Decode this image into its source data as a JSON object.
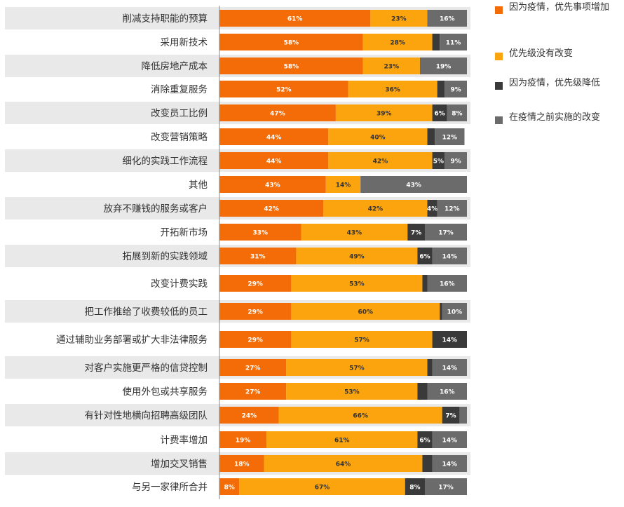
{
  "chart_data": {
    "type": "bar",
    "orientation": "horizontal-stacked-100",
    "categories": [
      "削减支持职能的预算",
      "采用新技术",
      "降低房地产成本",
      "消除重复服务",
      "改变员工比例",
      "改变营销策略",
      "细化的实践工作流程",
      "其他",
      "放弃不赚钱的服务或客户",
      "开拓新市场",
      "拓展到新的实践领域",
      "改变计费实践",
      "把工作推给了收费较低的员工",
      "通过辅助业务部署或扩大非法律服务",
      "对客户实施更严格的信贷控制",
      "使用外包或共享服务",
      "有针对性地横向招聘高级团队",
      "计费率增加",
      "增加交叉销售",
      "与另一家律所合并"
    ],
    "series": [
      {
        "name": "因为疫情，优先事项增加",
        "color": "#f36c08",
        "values": [
          61,
          58,
          58,
          52,
          47,
          44,
          44,
          43,
          42,
          33,
          31,
          29,
          29,
          29,
          27,
          27,
          24,
          19,
          18,
          8
        ],
        "labels": [
          "61%",
          "58%",
          "58%",
          "52%",
          "47%",
          "44%",
          "44%",
          "43%",
          "42%",
          "33%",
          "31%",
          "29%",
          "29%",
          "29%",
          "27%",
          "27%",
          "24%",
          "19%",
          "18%",
          "8%"
        ]
      },
      {
        "name": "优先级没有改变",
        "color": "#fba40d",
        "values": [
          23,
          28,
          23,
          36,
          39,
          40,
          42,
          14,
          42,
          43,
          49,
          53,
          60,
          57,
          57,
          53,
          66,
          61,
          64,
          67
        ],
        "labels": [
          "23%",
          "28%",
          "23%",
          "36%",
          "39%",
          "40%",
          "42%",
          "14%",
          "42%",
          "43%",
          "49%",
          "53%",
          "60%",
          "57%",
          "57%",
          "53%",
          "66%",
          "61%",
          "64%",
          "67%"
        ]
      },
      {
        "name": "因为疫情，优先级降低",
        "color": "#3a3a3a",
        "values": [
          0,
          3,
          0,
          3,
          6,
          3,
          5,
          0,
          4,
          7,
          6,
          2,
          1,
          14,
          2,
          4,
          7,
          6,
          4,
          8
        ],
        "labels": [
          "",
          "",
          "",
          "",
          "6%",
          "",
          "5%",
          "",
          "4%",
          "7%",
          "6%",
          "",
          "",
          "14%",
          "",
          "",
          "7%",
          "6%",
          "",
          "8%"
        ]
      },
      {
        "name": "在疫情之前实施的改变",
        "color": "#6b6b6b",
        "values": [
          16,
          11,
          19,
          9,
          8,
          12,
          9,
          43,
          12,
          17,
          14,
          16,
          10,
          0,
          14,
          16,
          3,
          14,
          14,
          17
        ],
        "labels": [
          "16%",
          "11%",
          "19%",
          "9%",
          "8%",
          "12%",
          "9%",
          "43%",
          "12%",
          "17%",
          "14%",
          "16%",
          "10%",
          "",
          "14%",
          "16%",
          "",
          "14%",
          "14%",
          "17%"
        ]
      }
    ],
    "xlim": [
      0,
      100
    ],
    "legend_position": "top-right",
    "row_shading": [
      true,
      false,
      true,
      false,
      true,
      false,
      true,
      false,
      true,
      false,
      true,
      false,
      true,
      false,
      true,
      false,
      true,
      false,
      true,
      false
    ]
  },
  "legend": {
    "item1": "因为疫情，优先事项增加",
    "item2": "优先级没有改变",
    "item3": "因为疫情，优先级降低",
    "item4": "在疫情之前实施的改变"
  },
  "colors": {
    "increased": "#f36c08",
    "unchanged": "#fba40d",
    "decreased": "#3a3a3a",
    "pre_pandemic": "#6b6b6b",
    "row_shade": "#e9e9e9",
    "axis": "#888888"
  }
}
